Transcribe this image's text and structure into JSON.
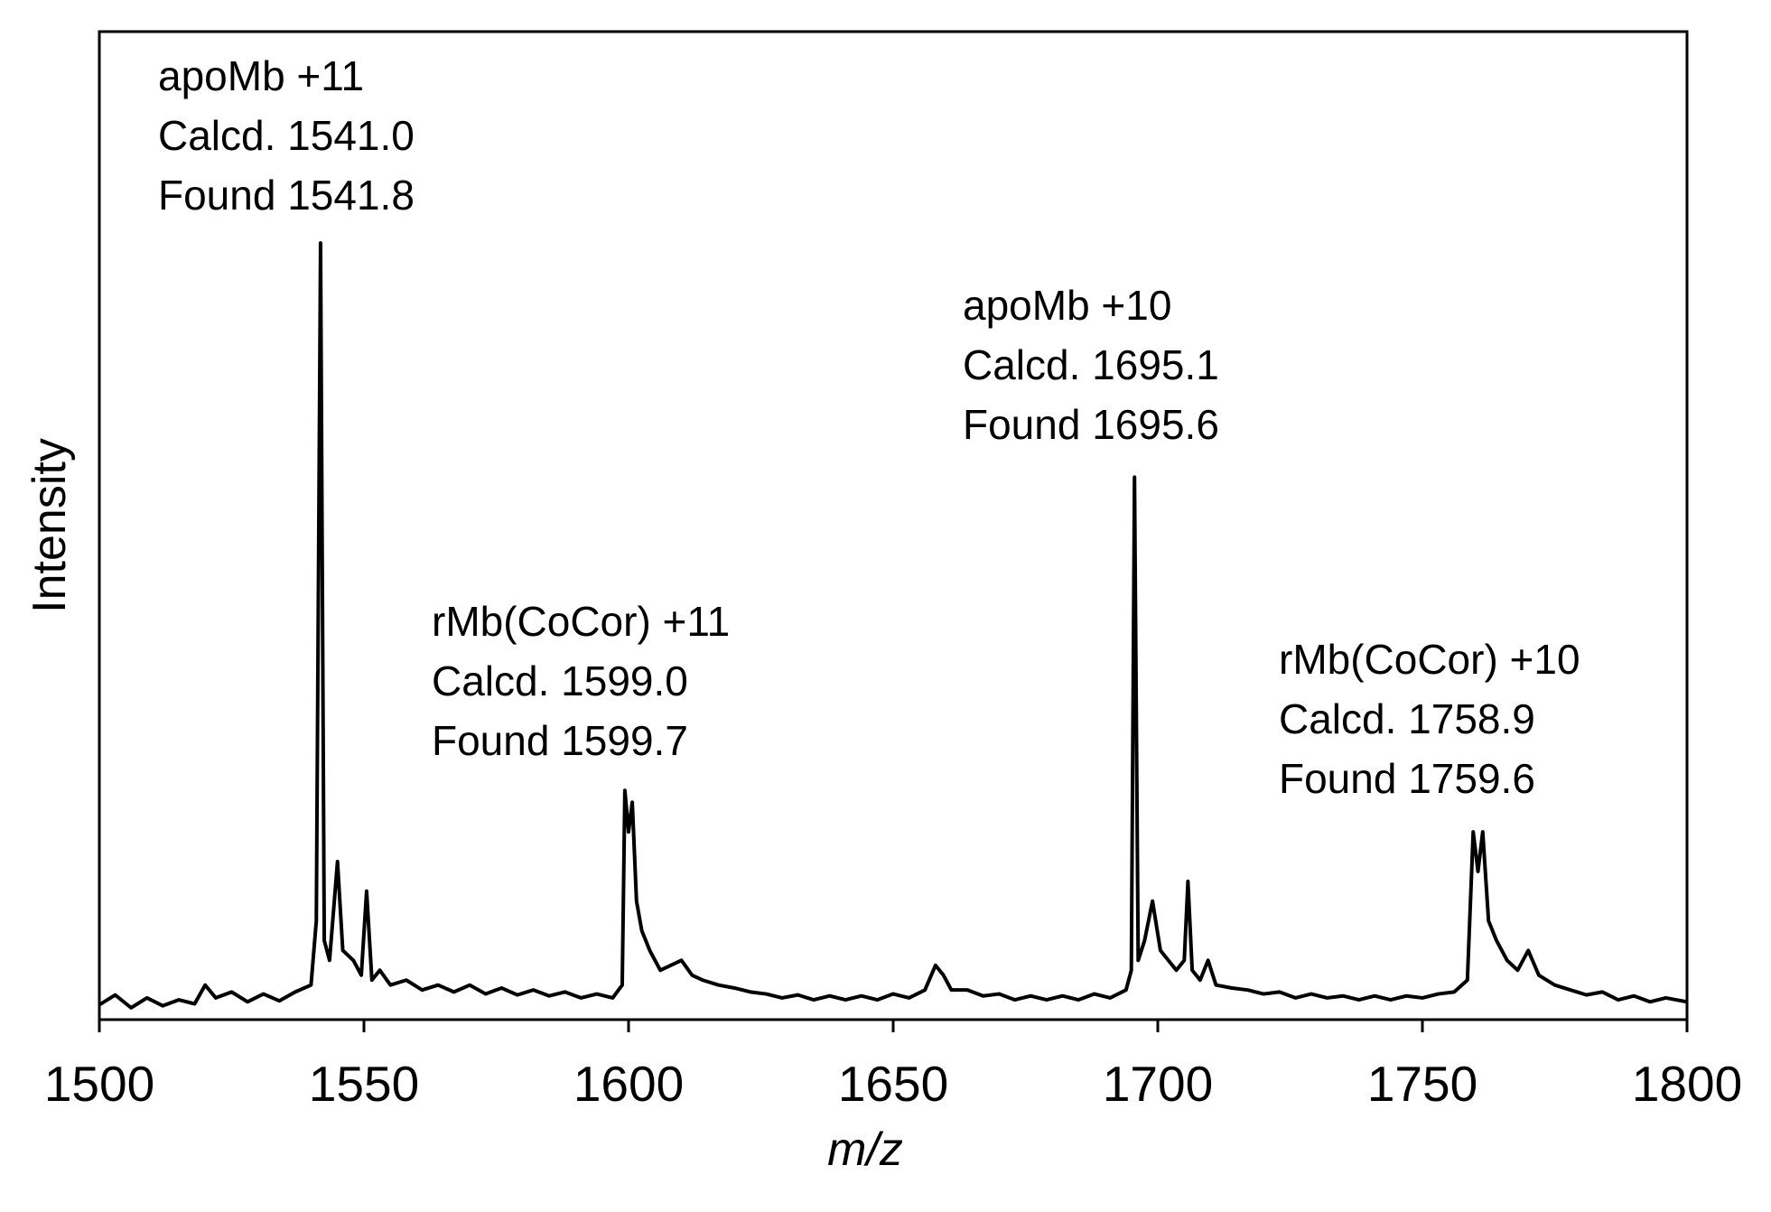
{
  "chart_data": {
    "type": "line",
    "xlabel": "m/z",
    "ylabel": "Intensity",
    "xlim": [
      1500,
      1800
    ],
    "xticks": [
      1500,
      1550,
      1600,
      1650,
      1700,
      1750,
      1800
    ],
    "ylim": [
      0,
      100
    ],
    "series": [
      {
        "color": "#000000",
        "x": [
          1500,
          1503,
          1506,
          1509,
          1512,
          1515,
          1518,
          1520,
          1522,
          1525,
          1528,
          1531,
          1534,
          1537,
          1540,
          1541,
          1541.8,
          1542.5,
          1543.5,
          1545,
          1546,
          1548,
          1549.5,
          1550.5,
          1551.5,
          1553,
          1555,
          1558,
          1561,
          1564,
          1567,
          1570,
          1573,
          1576,
          1579,
          1582,
          1585,
          1588,
          1591,
          1594,
          1597,
          1598.8,
          1599.3,
          1600,
          1600.7,
          1601.5,
          1602.5,
          1604,
          1606,
          1608,
          1610,
          1612,
          1614,
          1617,
          1620,
          1623,
          1626,
          1629,
          1632,
          1635,
          1638,
          1641,
          1644,
          1647,
          1650,
          1653,
          1656,
          1658,
          1659.5,
          1661,
          1664,
          1667,
          1670,
          1673,
          1676,
          1679,
          1682,
          1685,
          1688,
          1691,
          1694,
          1695,
          1695.6,
          1696.3,
          1697.5,
          1699,
          1700.5,
          1702,
          1703.5,
          1705,
          1705.7,
          1706.5,
          1708,
          1709.5,
          1711,
          1714,
          1717,
          1720,
          1723,
          1726,
          1729,
          1732,
          1735,
          1738,
          1741,
          1744,
          1747,
          1750,
          1753,
          1756,
          1758.5,
          1759.6,
          1760.5,
          1761.4,
          1762.5,
          1764,
          1766,
          1768,
          1770,
          1772,
          1775,
          1778,
          1781,
          1784,
          1787,
          1790,
          1793,
          1796,
          1800
        ],
        "values": [
          1.5,
          2.5,
          1.2,
          2.2,
          1.4,
          2.0,
          1.6,
          3.5,
          2.2,
          2.8,
          1.8,
          2.6,
          1.9,
          2.8,
          3.5,
          10,
          78.6,
          8,
          6,
          16,
          7,
          6,
          4.5,
          13,
          4,
          5,
          3.5,
          4,
          3,
          3.5,
          2.8,
          3.5,
          2.6,
          3.2,
          2.5,
          3.0,
          2.4,
          2.8,
          2.2,
          2.6,
          2.2,
          3.5,
          23.2,
          19,
          22,
          12,
          9,
          7,
          5,
          5.5,
          6,
          4.5,
          4,
          3.5,
          3.2,
          2.8,
          2.6,
          2.2,
          2.5,
          2.0,
          2.4,
          2.0,
          2.4,
          2.0,
          2.6,
          2.2,
          3,
          5.5,
          4.5,
          3,
          3.0,
          2.4,
          2.6,
          2.0,
          2.4,
          2.0,
          2.4,
          2.0,
          2.6,
          2.2,
          3,
          5,
          54.9,
          6,
          8,
          12,
          7,
          6,
          5,
          6,
          14,
          5,
          4,
          6,
          3.5,
          3.2,
          3.0,
          2.6,
          2.8,
          2.2,
          2.6,
          2.2,
          2.4,
          2.0,
          2.4,
          2.0,
          2.4,
          2.2,
          2.6,
          2.8,
          4,
          19,
          15,
          19,
          10,
          8,
          6,
          5,
          7,
          4.5,
          3.5,
          3,
          2.5,
          2.8,
          2.0,
          2.4,
          1.8,
          2.2,
          1.8
        ]
      }
    ],
    "annotations": [
      {
        "lines": [
          "apoMb +11",
          "Calcd. 1541.0",
          "Found 1541.8"
        ]
      },
      {
        "lines": [
          "rMb(CoCor) +11",
          "Calcd. 1599.0",
          "Found 1599.7"
        ]
      },
      {
        "lines": [
          "apoMb +10",
          "Calcd. 1695.1",
          "Found 1695.6"
        ]
      },
      {
        "lines": [
          "rMb(CoCor) +10",
          "Calcd. 1758.9",
          "Found 1759.6"
        ]
      }
    ]
  }
}
